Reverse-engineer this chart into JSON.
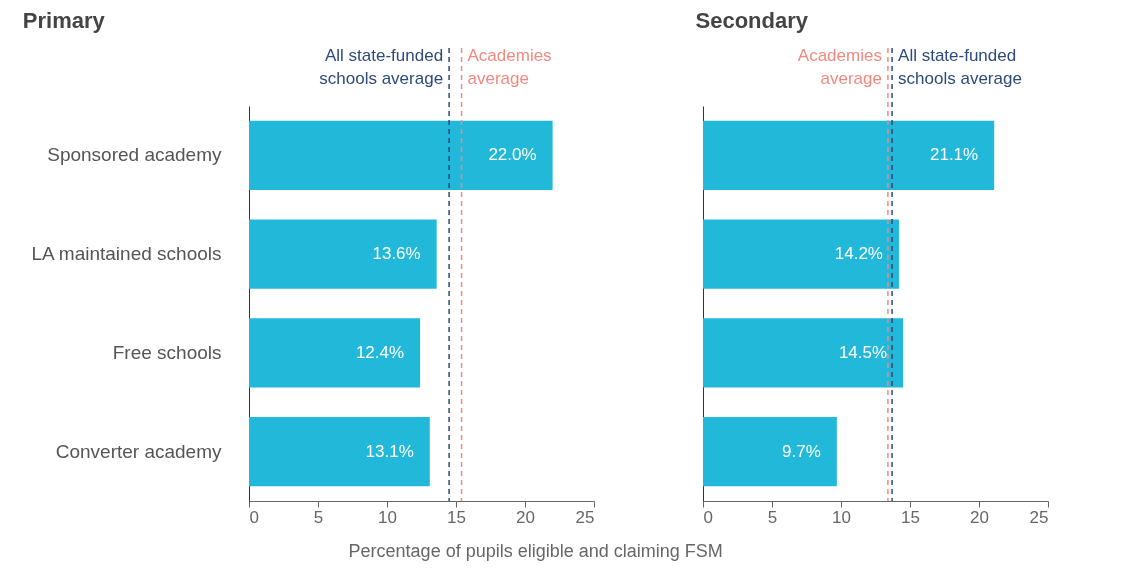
{
  "chart_data": [
    {
      "type": "bar",
      "title": "Primary",
      "orientation": "horizontal",
      "xlabel": "Percentage of pupils eligible and claiming FSM",
      "categories": [
        "Sponsored academy",
        "LA maintained schools",
        "Free schools",
        "Converter academy"
      ],
      "values": [
        22.0,
        13.6,
        12.4,
        13.1
      ],
      "value_labels": [
        "22.0%",
        "13.6%",
        "12.4%",
        "13.1%"
      ],
      "color": "#22b8d9",
      "xlim": [
        0,
        25
      ],
      "xticks": [
        0,
        5,
        10,
        15,
        20,
        25
      ],
      "ref_lines": [
        {
          "axis": "x",
          "value": 14.5,
          "label": "All state-funded\nschools average",
          "color": "#2d4a7a",
          "line_style": "dashed"
        },
        {
          "axis": "x",
          "value": 15.4,
          "label": "Academies\naverage",
          "color": "#f08a80",
          "line_style": "dashed"
        }
      ]
    },
    {
      "type": "bar",
      "title": "Secondary",
      "orientation": "horizontal",
      "categories": [
        null,
        null,
        null,
        null
      ],
      "values": [
        21.1,
        14.2,
        14.5,
        9.7
      ],
      "value_labels": [
        "21.1%",
        "14.2%",
        "14.5%",
        "9.7%"
      ],
      "color": "#22b8d9",
      "xlim": [
        0,
        25
      ],
      "xticks": [
        0,
        5,
        10,
        15,
        20,
        25
      ],
      "tick_labels": "x",
      "ref_lines": [
        {
          "axis": "x",
          "value": 13.4,
          "label": "Academies\naverage",
          "color": "#f08a80",
          "line_style": "dashed"
        },
        {
          "axis": "x",
          "value": 13.7,
          "label": "All state-funded\nschools average",
          "color": "#2d4a7a",
          "line_style": "dashed"
        }
      ]
    }
  ]
}
